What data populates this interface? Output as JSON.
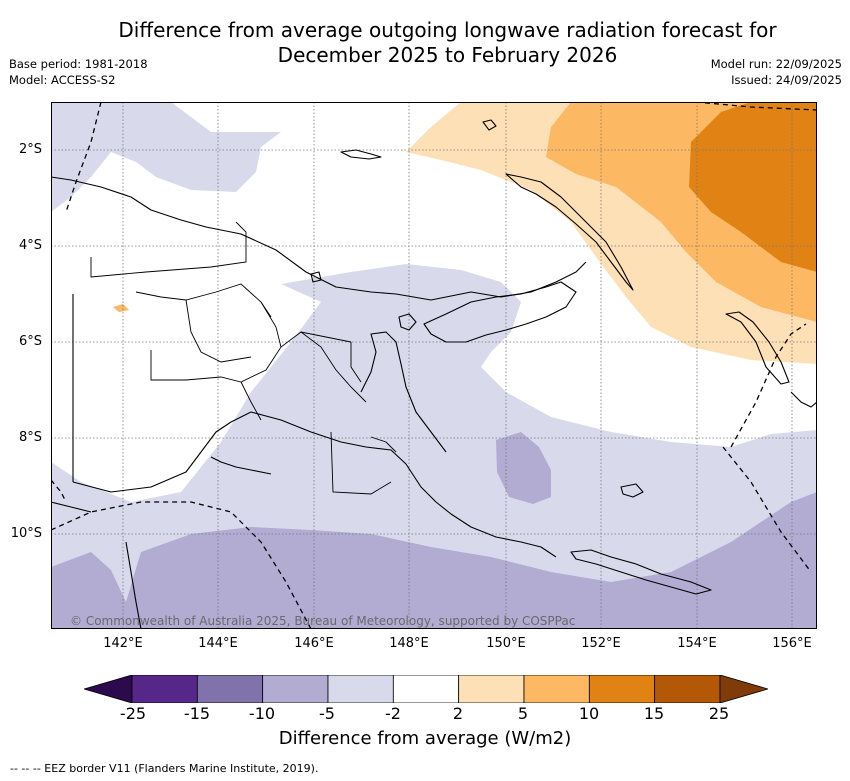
{
  "title_line1": "Difference from average outgoing longwave radiation forecast for",
  "title_line2": "December 2025 to February 2026",
  "base_period": "Base period: 1981-2018",
  "model": "Model: ACCESS-S2",
  "model_run": "Model run: 22/09/2025",
  "issued": "Issued: 24/09/2025",
  "map": {
    "region": "Papua New Guinea",
    "lat_labels": [
      "2°S",
      "4°S",
      "6°S",
      "8°S",
      "10°S"
    ],
    "lon_labels": [
      "142°E",
      "144°E",
      "146°E",
      "148°E",
      "150°E",
      "152°E",
      "154°E",
      "156°E"
    ],
    "copyright": "© Commonwealth of Australia 2025, Bureau of Meteorology, supported by COSPPac"
  },
  "colorbar": {
    "title": "Difference from average (W/m2)",
    "ticks": [
      "-25",
      "-15",
      "-10",
      "-5",
      "-2",
      "2",
      "5",
      "10",
      "15",
      "25"
    ],
    "under_color": "#2d0a4e",
    "over_color": "#7f3b08",
    "colors": [
      "#542788",
      "#8073ac",
      "#b2abd2",
      "#d8daeb",
      "#ffffff",
      "#fee0b6",
      "#fdb863",
      "#e08214",
      "#b35806"
    ]
  },
  "footer": "--  --  -- EEZ border V11 (Flanders Marine Institute, 2019)."
}
